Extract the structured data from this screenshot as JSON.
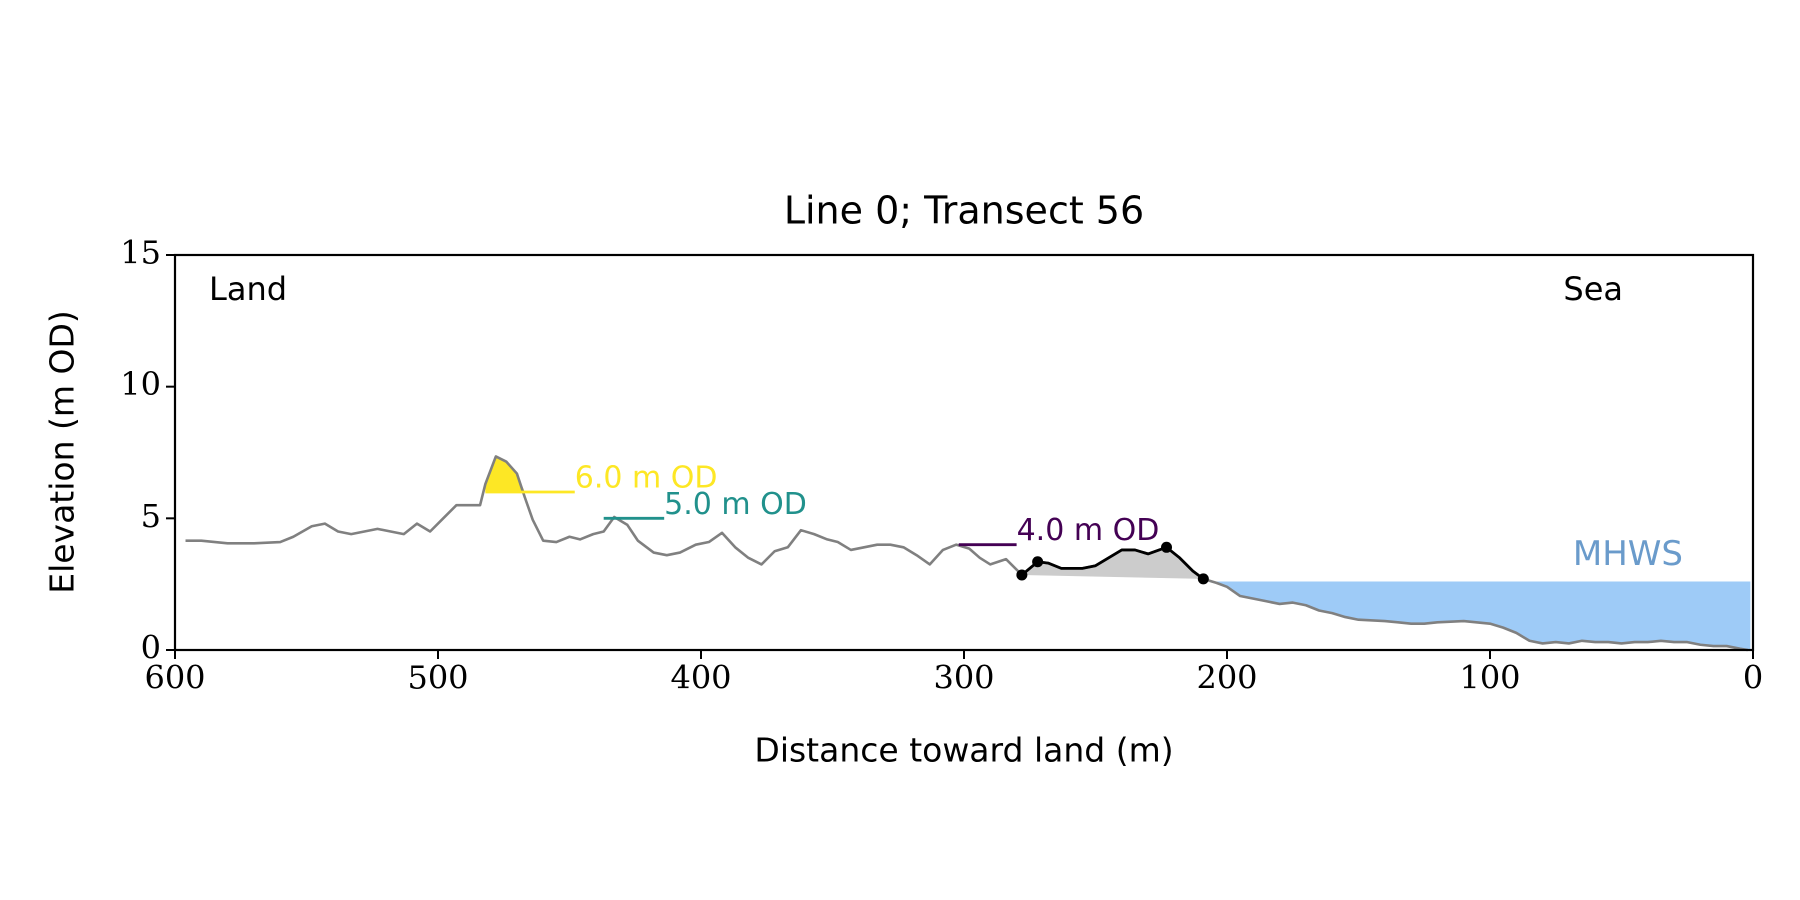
{
  "chart_data": {
    "type": "line",
    "title": "Line 0; Transect 56",
    "xlabel": "Distance toward land (m)",
    "ylabel": "Elevation (m OD)",
    "xlim": [
      600,
      0
    ],
    "ylim": [
      0,
      15
    ],
    "xticks": [
      600,
      500,
      400,
      300,
      200,
      100,
      0
    ],
    "yticks": [
      0,
      5,
      10,
      15
    ],
    "grid": false,
    "corner_labels": {
      "left": "Land",
      "right": "Sea"
    },
    "series": [
      {
        "color": "#808080",
        "x": [
          596,
          590,
          580,
          570,
          560,
          555,
          548,
          543,
          538,
          533,
          528,
          523,
          518,
          513,
          508,
          503,
          498,
          493,
          488,
          484,
          482,
          478,
          474,
          470,
          467,
          464,
          460,
          455,
          450,
          446,
          441,
          437,
          433,
          428,
          424,
          418,
          413,
          408,
          402,
          397,
          392,
          387,
          382,
          377,
          372,
          367,
          362,
          357,
          352,
          348,
          343,
          338,
          333,
          328,
          323,
          318,
          313,
          308,
          303,
          298,
          294,
          290,
          284,
          278,
          272,
          268,
          263,
          255,
          250,
          245,
          240,
          235,
          230,
          223,
          218,
          213,
          209,
          204,
          200,
          195,
          190,
          185,
          180,
          175,
          170,
          165,
          160,
          155,
          150,
          140,
          135,
          130,
          125,
          120,
          110,
          100,
          95,
          90,
          85,
          80,
          75,
          70,
          65,
          60,
          55,
          50,
          45,
          40,
          35,
          30,
          25,
          20,
          15,
          10,
          5,
          2
        ],
        "values": [
          4.15,
          4.15,
          4.05,
          4.05,
          4.1,
          4.3,
          4.7,
          4.8,
          4.5,
          4.4,
          4.5,
          4.6,
          4.5,
          4.4,
          4.8,
          4.5,
          5.0,
          5.5,
          5.5,
          5.5,
          6.3,
          7.35,
          7.15,
          6.7,
          5.8,
          4.95,
          4.15,
          4.1,
          4.3,
          4.2,
          4.4,
          4.5,
          5.05,
          4.75,
          4.15,
          3.7,
          3.6,
          3.7,
          4.0,
          4.1,
          4.45,
          3.9,
          3.5,
          3.25,
          3.75,
          3.9,
          4.55,
          4.4,
          4.2,
          4.1,
          3.8,
          3.9,
          4.0,
          4.0,
          3.9,
          3.6,
          3.25,
          3.8,
          4.0,
          3.85,
          3.5,
          3.25,
          3.45,
          2.85,
          3.35,
          3.3,
          3.1,
          3.1,
          3.2,
          3.5,
          3.8,
          3.8,
          3.65,
          3.9,
          3.5,
          3.0,
          2.7,
          2.55,
          2.4,
          2.05,
          1.95,
          1.85,
          1.75,
          1.8,
          1.7,
          1.5,
          1.4,
          1.25,
          1.15,
          1.1,
          1.05,
          1.0,
          1.0,
          1.05,
          1.1,
          1.0,
          0.85,
          0.65,
          0.35,
          0.25,
          0.3,
          0.25,
          0.35,
          0.3,
          0.3,
          0.25,
          0.3,
          0.3,
          0.35,
          0.3,
          0.3,
          0.2,
          0.15,
          0.15,
          0.05,
          0
        ]
      }
    ],
    "feature": {
      "x": [
        278,
        272,
        223,
        209
      ],
      "values": [
        2.85,
        3.35,
        3.9,
        2.7
      ],
      "color": "#000000",
      "fill": "#cccccc"
    },
    "levels": [
      {
        "label": "6.0 m OD",
        "value": 6.0,
        "x": [
          482,
          448
        ],
        "color": "#fde725"
      },
      {
        "label": "5.0 m OD",
        "value": 5.0,
        "x": [
          437,
          414
        ],
        "color": "#21918c"
      },
      {
        "label": "4.0 m OD",
        "value": 4.0,
        "x": [
          302,
          280
        ],
        "color": "#440154"
      }
    ],
    "mhws": {
      "label": "MHWS",
      "value": 2.6,
      "x": [
        204,
        1
      ],
      "color": "#9ecbf7",
      "label_color": "#6a9bcb"
    }
  }
}
